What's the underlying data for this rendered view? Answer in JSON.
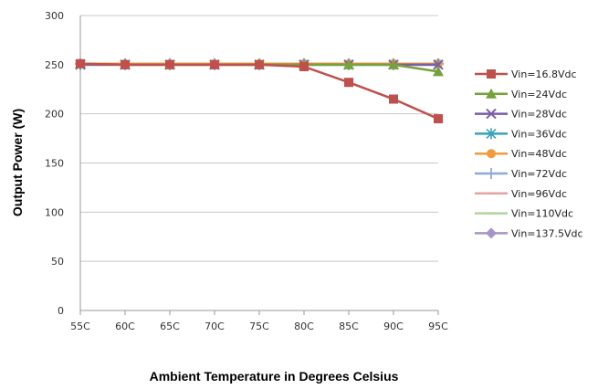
{
  "chart_data": {
    "type": "line",
    "xlabel": "Ambient Temperature in Degrees Celsius",
    "ylabel": "Output Power (W)",
    "categories": [
      "55C",
      "60C",
      "65C",
      "70C",
      "75C",
      "80C",
      "85C",
      "90C",
      "95C"
    ],
    "ylim": [
      0,
      300
    ],
    "yticks": [
      0,
      50,
      100,
      150,
      200,
      250,
      300
    ],
    "grid": true,
    "legend": "right",
    "series": [
      {
        "name": "Vin=16.8Vdc",
        "color": "#c0504d",
        "marker": "square",
        "values": [
          251,
          250,
          250,
          250,
          250,
          248,
          232,
          215,
          195
        ]
      },
      {
        "name": "Vin=24Vdc",
        "color": "#77a23b",
        "marker": "triangle",
        "values": [
          251,
          250,
          250,
          250,
          250,
          250,
          250,
          250,
          243
        ]
      },
      {
        "name": "Vin=28Vdc",
        "color": "#7b5ea7",
        "marker": "x",
        "values": [
          250,
          250,
          250,
          250,
          250,
          250,
          250,
          250,
          250
        ]
      },
      {
        "name": "Vin=36Vdc",
        "color": "#36a3b8",
        "marker": "asterisk",
        "values": [
          250,
          250,
          250,
          250,
          250,
          250,
          250,
          250,
          250
        ]
      },
      {
        "name": "Vin=48Vdc",
        "color": "#f39a3c",
        "marker": "circle",
        "values": [
          251,
          251,
          251,
          251,
          251,
          251,
          251,
          251,
          251
        ]
      },
      {
        "name": "Vin=72Vdc",
        "color": "#8eaadb",
        "marker": "plus",
        "values": [
          251,
          251,
          251,
          251,
          251,
          251,
          251,
          251,
          251
        ]
      },
      {
        "name": "Vin=96Vdc",
        "color": "#e6a3a3",
        "marker": "dash",
        "values": [
          251,
          251,
          251,
          251,
          251,
          251,
          251,
          251,
          251
        ]
      },
      {
        "name": "Vin=110Vdc",
        "color": "#b5d39a",
        "marker": "dash",
        "values": [
          251,
          251,
          251,
          251,
          251,
          251,
          251,
          251,
          251
        ]
      },
      {
        "name": "Vin=137.5Vdc",
        "color": "#a794c8",
        "marker": "diamond",
        "values": [
          251,
          251,
          251,
          251,
          251,
          251,
          251,
          251,
          251
        ]
      }
    ]
  }
}
